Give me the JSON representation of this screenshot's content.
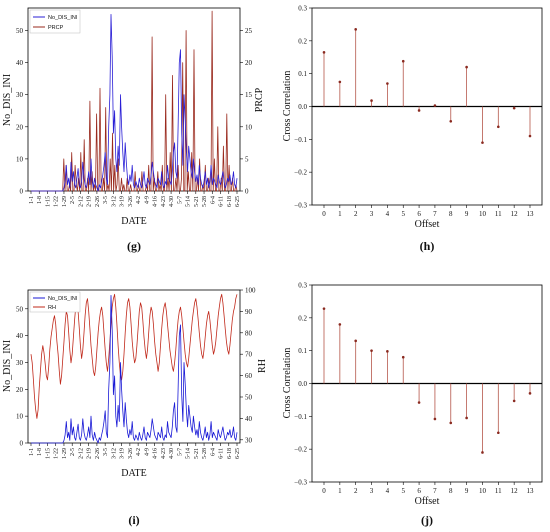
{
  "chart_data": [
    {
      "id": "g",
      "type": "line",
      "panel_label": "(g)",
      "xlabel": "DATE",
      "ylabel_left": "No_DIS_INI",
      "ylabel_right": "PRCP",
      "ylim_left": [
        0,
        57
      ],
      "ylim_right": [
        0,
        28.5
      ],
      "yticks_left": [
        0,
        10,
        20,
        30,
        40,
        50
      ],
      "yticks_right": [
        0,
        5,
        10,
        15,
        20,
        25
      ],
      "x_ticks": [
        "1-1",
        "1-8",
        "1-15",
        "1-22",
        "1-29",
        "2-5",
        "2-12",
        "2-19",
        "2-26",
        "3-5",
        "3-12",
        "3-19",
        "3-26",
        "4-2",
        "4-9",
        "4-16",
        "4-23",
        "4-30",
        "5-7",
        "5-14",
        "5-21",
        "5-28",
        "6-4",
        "6-11",
        "6-18",
        "6-25"
      ],
      "series": [
        {
          "name": "No_DIS_INI",
          "color": "#2a1fd6",
          "axis": "left",
          "values": [
            0,
            0,
            0,
            0,
            0,
            0,
            0,
            0,
            0,
            0,
            0,
            0,
            0,
            0,
            0,
            0,
            0,
            0,
            0,
            0,
            0,
            0,
            0,
            0,
            0,
            0,
            0,
            0,
            1,
            3,
            8,
            2,
            4,
            1,
            9,
            3,
            6,
            2,
            1,
            4,
            7,
            2,
            1,
            3,
            9,
            4,
            2,
            1,
            3,
            6,
            2,
            10,
            3,
            1,
            4,
            2,
            1,
            0,
            2,
            1,
            3,
            5,
            8,
            12,
            4,
            2,
            20,
            30,
            55,
            42,
            18,
            25,
            10,
            6,
            14,
            8,
            30,
            20,
            12,
            6,
            15,
            9,
            4,
            2,
            5,
            3,
            8,
            2,
            1,
            3,
            2,
            1,
            4,
            2,
            1,
            3,
            6,
            2,
            1,
            4,
            3,
            2,
            5,
            9,
            6,
            3,
            2,
            1,
            4,
            3,
            2,
            6,
            2,
            1,
            3,
            2,
            8,
            4,
            3,
            2,
            6,
            12,
            15,
            6,
            4,
            20,
            40,
            44,
            18,
            8,
            30,
            22,
            12,
            6,
            14,
            10,
            6,
            4,
            10,
            6,
            3,
            5,
            2,
            8,
            4,
            2,
            1,
            3,
            6,
            2,
            4,
            1,
            3,
            8,
            2,
            4,
            3,
            2,
            1,
            5,
            3,
            2,
            4,
            6,
            3,
            1,
            2,
            4,
            3,
            5,
            2,
            3,
            6,
            2,
            1,
            4
          ]
        },
        {
          "name": "PRCP",
          "color": "#9a2a1e",
          "axis": "right",
          "values": [
            0,
            0,
            0,
            0,
            0,
            0,
            0,
            0,
            0,
            0,
            0,
            0,
            0,
            0,
            0,
            0,
            0,
            0,
            0,
            0,
            0,
            0,
            0,
            0,
            0,
            0,
            0,
            0,
            0,
            5,
            0,
            4,
            0,
            0,
            1,
            0,
            6,
            0,
            0,
            4,
            1,
            0,
            2,
            0,
            6,
            0,
            0,
            8,
            0,
            0,
            2,
            0,
            14,
            0,
            3,
            0,
            1,
            0,
            12,
            0,
            0,
            16,
            0,
            0,
            2,
            0,
            13,
            0,
            1,
            0,
            5,
            0,
            9,
            0,
            4,
            0,
            1,
            5,
            0,
            0,
            2,
            0,
            1,
            0,
            0,
            2,
            0,
            0,
            1,
            0,
            0,
            0,
            3,
            0,
            0,
            1,
            0,
            0,
            3,
            0,
            0,
            0,
            1,
            0,
            4,
            0,
            0,
            24,
            0,
            2,
            0,
            0,
            3,
            0,
            1,
            0,
            4,
            0,
            0,
            15,
            0,
            2,
            0,
            6,
            0,
            18,
            0,
            0,
            2,
            0,
            4,
            0,
            0,
            2,
            20,
            0,
            0,
            25,
            0,
            3,
            0,
            0,
            6,
            0,
            22,
            0,
            0,
            2,
            0,
            5,
            0,
            0,
            1,
            0,
            4,
            0,
            0,
            2,
            0,
            0,
            28,
            0,
            5,
            0,
            0,
            10,
            0,
            0,
            2,
            0,
            7,
            0,
            0,
            12,
            0,
            4,
            0,
            0,
            2,
            0,
            0,
            1,
            0
          ]
        }
      ]
    },
    {
      "id": "h",
      "type": "bar",
      "panel_label": "(h)",
      "xlabel": "Offset",
      "ylabel": "Cross Correlation",
      "ylim": [
        -0.3,
        0.3
      ],
      "yticks": [
        -0.3,
        -0.2,
        -0.1,
        0.0,
        0.1,
        0.2,
        0.3
      ],
      "ytick_labels": [
        "−0.3",
        "−0.2",
        "−0.1",
        "0.0",
        "0.1",
        "0.2",
        "0.3"
      ],
      "categories": [
        "0",
        "1",
        "2",
        "3",
        "4",
        "5",
        "6",
        "7",
        "8",
        "9",
        "10",
        "11",
        "12",
        "13"
      ],
      "values": [
        0.165,
        0.075,
        0.235,
        0.018,
        0.07,
        0.138,
        -0.012,
        0.003,
        -0.045,
        0.12,
        -0.11,
        -0.062,
        -0.005,
        -0.09
      ]
    },
    {
      "id": "i",
      "type": "line",
      "panel_label": "(i)",
      "xlabel": "DATE",
      "ylabel_left": "No_DIS_INI",
      "ylabel_right": "RH",
      "ylim_left": [
        0,
        57
      ],
      "ylim_right": [
        28.5,
        100
      ],
      "yticks_left": [
        0,
        10,
        20,
        30,
        40,
        50
      ],
      "yticks_right": [
        30,
        40,
        50,
        60,
        70,
        80,
        90,
        100
      ],
      "x_ticks": [
        "1-1",
        "1-8",
        "1-15",
        "1-22",
        "1-29",
        "2-5",
        "2-12",
        "2-19",
        "2-26",
        "3-5",
        "3-12",
        "3-19",
        "3-26",
        "4-2",
        "4-9",
        "4-16",
        "4-23",
        "4-30",
        "5-7",
        "5-14",
        "5-21",
        "5-28",
        "6-4",
        "6-11",
        "6-18",
        "6-25"
      ],
      "series": [
        {
          "name": "No_DIS_INI",
          "color": "#1a1ad6",
          "axis": "left",
          "values": [
            0,
            0,
            0,
            0,
            0,
            0,
            0,
            0,
            0,
            0,
            0,
            0,
            0,
            0,
            0,
            0,
            0,
            0,
            0,
            0,
            0,
            0,
            0,
            0,
            0,
            0,
            0,
            0,
            1,
            3,
            8,
            2,
            4,
            1,
            9,
            3,
            6,
            2,
            1,
            4,
            7,
            2,
            1,
            3,
            9,
            4,
            2,
            1,
            3,
            6,
            2,
            10,
            3,
            1,
            4,
            2,
            1,
            0,
            2,
            1,
            3,
            5,
            8,
            12,
            4,
            2,
            20,
            30,
            55,
            42,
            18,
            25,
            10,
            6,
            14,
            8,
            30,
            20,
            12,
            6,
            15,
            9,
            4,
            2,
            5,
            3,
            8,
            2,
            1,
            3,
            2,
            1,
            4,
            2,
            1,
            3,
            6,
            2,
            1,
            4,
            3,
            2,
            5,
            9,
            6,
            3,
            2,
            1,
            4,
            3,
            2,
            6,
            2,
            1,
            3,
            2,
            8,
            4,
            3,
            2,
            6,
            12,
            15,
            6,
            4,
            20,
            40,
            44,
            18,
            8,
            30,
            22,
            12,
            6,
            14,
            10,
            6,
            4,
            10,
            6,
            3,
            5,
            2,
            8,
            4,
            2,
            1,
            3,
            6,
            2,
            4,
            1,
            3,
            8,
            2,
            4,
            3,
            2,
            1,
            5,
            3,
            2,
            4,
            6,
            3,
            1,
            2,
            4,
            3,
            5,
            2,
            3,
            6,
            2,
            1,
            4
          ]
        },
        {
          "name": "RH",
          "color": "#c0281a",
          "axis": "right",
          "values": [
            70,
            66,
            58,
            50,
            44,
            40,
            44,
            54,
            62,
            70,
            74,
            71,
            66,
            60,
            58,
            64,
            72,
            78,
            82,
            86,
            88,
            84,
            76,
            70,
            62,
            56,
            60,
            68,
            76,
            84,
            90,
            88,
            80,
            72,
            66,
            70,
            78,
            86,
            92,
            95,
            90,
            82,
            74,
            68,
            72,
            80,
            88,
            94,
            96,
            90,
            82,
            74,
            68,
            62,
            60,
            64,
            72,
            80,
            86,
            90,
            92,
            88,
            80,
            72,
            66,
            62,
            68,
            76,
            84,
            92,
            96,
            98,
            92,
            84,
            74,
            66,
            60,
            58,
            62,
            70,
            80,
            88,
            94,
            96,
            92,
            84,
            76,
            70,
            66,
            68,
            74,
            82,
            90,
            94,
            92,
            86,
            78,
            72,
            68,
            72,
            80,
            88,
            92,
            90,
            84,
            76,
            70,
            66,
            62,
            66,
            74,
            82,
            88,
            92,
            94,
            90,
            84,
            78,
            72,
            68,
            64,
            62,
            66,
            72,
            80,
            86,
            90,
            92,
            88,
            82,
            76,
            70,
            66,
            64,
            68,
            74,
            80,
            86,
            90,
            94,
            96,
            92,
            86,
            80,
            74,
            70,
            68,
            72,
            78,
            84,
            88,
            90,
            86,
            80,
            74,
            70,
            72,
            76,
            82,
            88,
            92,
            96,
            98,
            94,
            88,
            82,
            76,
            72,
            70,
            74,
            80,
            86,
            90,
            92,
            96,
            98
          ]
        }
      ]
    },
    {
      "id": "j",
      "type": "bar",
      "panel_label": "(j)",
      "xlabel": "Offset",
      "ylabel": "Cross Correlation",
      "ylim": [
        -0.3,
        0.3
      ],
      "yticks": [
        -0.3,
        -0.2,
        -0.1,
        0.0,
        0.1,
        0.2,
        0.3
      ],
      "ytick_labels": [
        "−0.3",
        "−0.2",
        "−0.1",
        "0.0",
        "0.1",
        "0.2",
        "0.3"
      ],
      "categories": [
        "0",
        "1",
        "2",
        "3",
        "4",
        "5",
        "6",
        "7",
        "8",
        "9",
        "10",
        "11",
        "12",
        "13"
      ],
      "values": [
        0.228,
        0.18,
        0.13,
        0.1,
        0.098,
        0.08,
        -0.058,
        -0.108,
        -0.12,
        -0.105,
        -0.21,
        -0.15,
        -0.053,
        -0.03
      ]
    }
  ],
  "stem_color": "#b5564a",
  "marker_color": "#8a2a20"
}
